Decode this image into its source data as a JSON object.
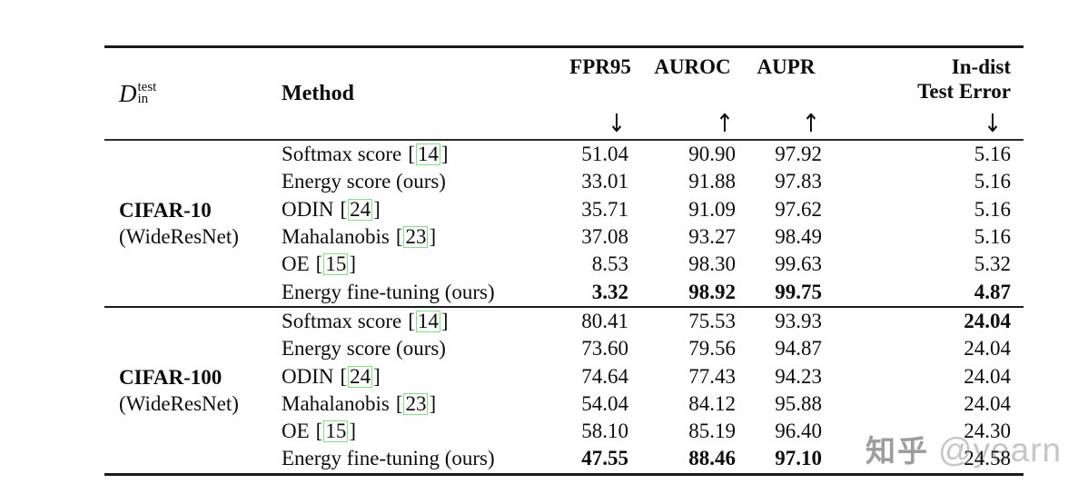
{
  "header": {
    "dataset_symbol": "D",
    "dataset_sup": "test",
    "dataset_sub": "in",
    "method_label": "Method",
    "columns": [
      {
        "label": "FPR95",
        "arrow": "↓"
      },
      {
        "label": "AUROC",
        "arrow": "↑"
      },
      {
        "label": "AUPR",
        "arrow": "↑"
      },
      {
        "label": "In-dist",
        "label2": "Test Error",
        "arrow": "↓"
      }
    ]
  },
  "groups": [
    {
      "dataset": "CIFAR-10",
      "network": "(WideResNet)",
      "rows": [
        {
          "method": "Softmax score",
          "cite": "14",
          "values": [
            "51.04",
            "90.90",
            "97.92",
            "5.16"
          ]
        },
        {
          "method": "Energy score (ours)",
          "values": [
            "33.01",
            "91.88",
            "97.83",
            "5.16"
          ]
        },
        {
          "method": "ODIN",
          "cite": "24",
          "values": [
            "35.71",
            "91.09",
            "97.62",
            "5.16"
          ]
        },
        {
          "method": "Mahalanobis",
          "cite": "23",
          "values": [
            "37.08",
            "93.27",
            "98.49",
            "5.16"
          ]
        },
        {
          "method": "OE",
          "cite": "15",
          "values": [
            "8.53",
            "98.30",
            "99.63",
            "5.32"
          ]
        },
        {
          "method": "Energy fine-tuning (ours)",
          "values": [
            "3.32",
            "98.92",
            "99.75",
            "4.87"
          ]
        }
      ]
    },
    {
      "dataset": "CIFAR-100",
      "network": "(WideResNet)",
      "rows": [
        {
          "method": "Softmax score",
          "cite": "14",
          "values": [
            "80.41",
            "75.53",
            "93.93",
            "24.04"
          ]
        },
        {
          "method": "Energy score (ours)",
          "values": [
            "73.60",
            "79.56",
            "94.87",
            "24.04"
          ]
        },
        {
          "method": "ODIN",
          "cite": "24",
          "values": [
            "74.64",
            "77.43",
            "94.23",
            "24.04"
          ]
        },
        {
          "method": "Mahalanobis",
          "cite": "23",
          "values": [
            "54.04",
            "84.12",
            "95.88",
            "24.04"
          ]
        },
        {
          "method": "OE",
          "cite": "15",
          "values": [
            "58.10",
            "85.19",
            "96.40",
            "24.30"
          ]
        },
        {
          "method": "Energy fine-tuning (ours)",
          "values": [
            "47.55",
            "88.46",
            "97.10",
            "24.58"
          ]
        }
      ]
    }
  ],
  "watermark": {
    "site": "知乎",
    "user": "@yearn"
  },
  "colors": {
    "cite_box_green": "#82e082",
    "rule_black": "#1a1a1a",
    "watermark_site_gray": "#9d9d9d",
    "watermark_user_gray": "#c6c6c6"
  }
}
